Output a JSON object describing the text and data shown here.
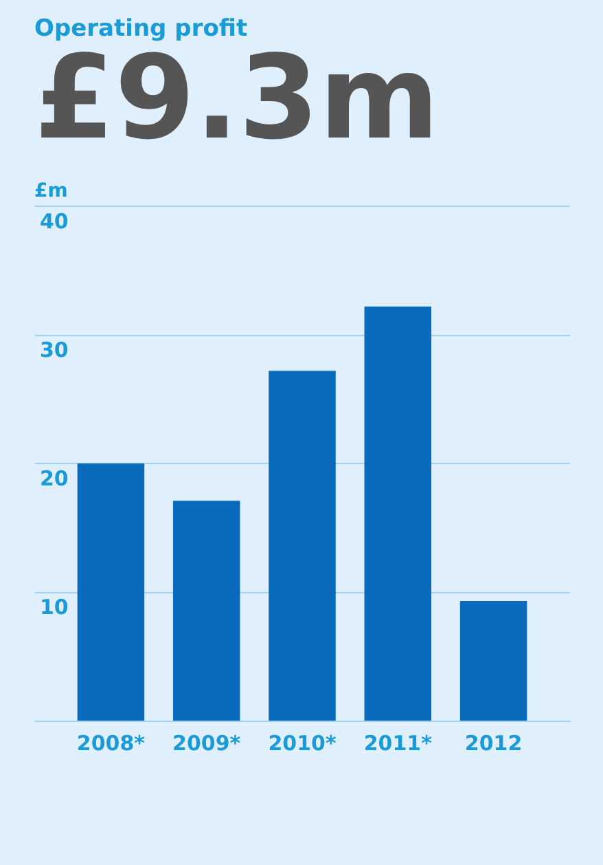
{
  "chart_data": {
    "type": "bar",
    "title": "Operating profit",
    "subtitle": "£9.3m",
    "ylabel": "£m",
    "categories": [
      "2008*",
      "2009*",
      "2010*",
      "2011*",
      "2012"
    ],
    "values": [
      20.0,
      17.1,
      27.2,
      32.2,
      9.3
    ],
    "color": "#0a6bbd",
    "ylim": [
      0,
      40
    ],
    "yticks": [
      10,
      20,
      30,
      40
    ],
    "grid": "y"
  }
}
